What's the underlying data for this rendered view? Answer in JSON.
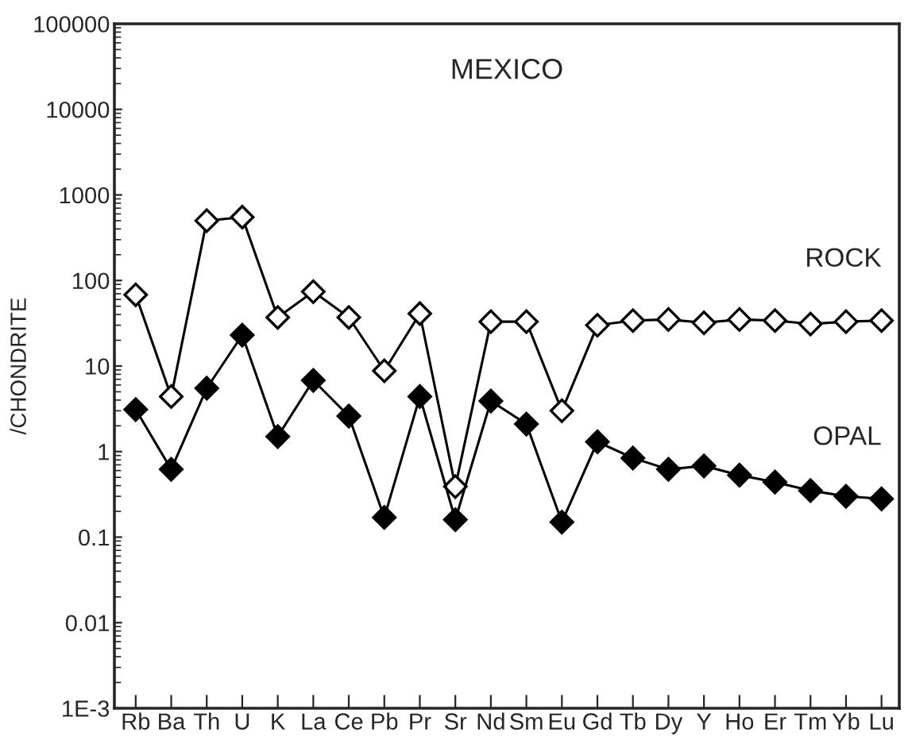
{
  "chart_data": {
    "type": "line",
    "title": "MEXICO",
    "ylabel": "/CHONDRITE",
    "categories": [
      "Rb",
      "Ba",
      "Th",
      "U",
      "K",
      "La",
      "Ce",
      "Pb",
      "Pr",
      "Sr",
      "Nd",
      "Sm",
      "Eu",
      "Gd",
      "Tb",
      "Dy",
      "Y",
      "Ho",
      "Er",
      "Tm",
      "Yb",
      "Lu"
    ],
    "series": [
      {
        "name": "ROCK",
        "color": "#000000",
        "values": [
          68,
          4.4,
          500,
          550,
          37,
          74,
          37,
          8.8,
          41,
          0.39,
          33,
          33,
          3.0,
          30,
          34,
          35,
          32,
          35,
          34,
          31,
          33,
          34
        ]
      },
      {
        "name": "OPAL",
        "color": "#000000",
        "values": [
          3.1,
          0.62,
          5.5,
          23,
          1.5,
          6.8,
          2.6,
          0.17,
          4.4,
          0.16,
          3.9,
          2.1,
          0.15,
          1.3,
          0.84,
          0.62,
          0.68,
          0.53,
          0.44,
          0.35,
          0.3,
          0.28
        ]
      }
    ],
    "log": "y",
    "ylim": [
      0.001,
      100000
    ],
    "yticks": [
      {
        "value": 0.001,
        "label": "1E-3"
      },
      0.01,
      0.1,
      1,
      10,
      100,
      1000,
      10000,
      100000
    ],
    "marker": "diamond",
    "line_style": "solid",
    "grid": false,
    "legend": false
  }
}
